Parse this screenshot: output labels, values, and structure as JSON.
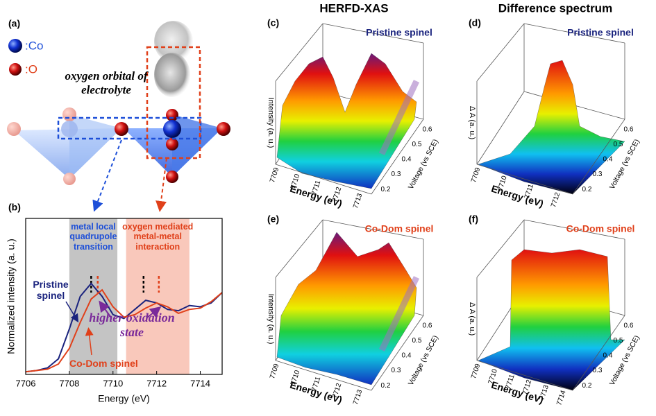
{
  "figure": {
    "panel_a": {
      "label": "(a)",
      "legend": [
        ":Co",
        ":O"
      ],
      "caption": "oxygen orbital of electrolyte"
    },
    "panel_b_label": "(b)",
    "columns": [
      "HERFD-XAS",
      "Difference spectrum"
    ],
    "surfaces": [
      {
        "label": "(c)",
        "title": "Pristine spinel",
        "z_label": "Intensity (a. u.)",
        "x_label": "Energy (eV)",
        "y_label": "Voltage (vs SCE)",
        "x_ticks": [
          7709,
          7710,
          7711,
          7712,
          7713
        ],
        "y_ticks": [
          0.2,
          0.3,
          0.4,
          0.5,
          0.6
        ]
      },
      {
        "label": "(d)",
        "title": "Pristine spinel",
        "z_label": "Δ A (a. u.)",
        "x_label": "Energy (eV)",
        "y_label": "Voltage (vs SCE)",
        "x_ticks": [
          7709,
          7710,
          7711,
          7712
        ],
        "y_ticks": [
          0.2,
          0.3,
          0.4,
          0.5,
          0.6
        ]
      },
      {
        "label": "(e)",
        "title": "Co-Dom spinel",
        "z_label": "Intensity (a. u.)",
        "x_label": "Energy (eV)",
        "y_label": "Voltage (vs SCE)",
        "x_ticks": [
          7709,
          7710,
          7711,
          7712,
          7713
        ],
        "y_ticks": [
          0.2,
          0.3,
          0.4,
          0.5,
          0.6
        ]
      },
      {
        "label": "(f)",
        "title": "Co-Dom spinel",
        "z_label": "Δ A (a. u.)",
        "x_label": "Energy (eV)",
        "y_label": "Voltage (vs SCE)",
        "x_ticks": [
          7709,
          7710,
          7711,
          7712,
          7713,
          7714
        ],
        "y_ticks": [
          0.2,
          0.3,
          0.4,
          0.5,
          0.6
        ]
      }
    ]
  },
  "chart_data": {
    "type": "line",
    "x_label": "Energy (eV)",
    "y_label": "Normalized intensity (a. u.)",
    "x": [
      7706,
      7706.5,
      7707,
      7707.5,
      7708,
      7708.5,
      7709,
      7709.5,
      7710,
      7710.5,
      7711,
      7711.5,
      7712,
      7712.5,
      7713,
      7713.5,
      7714,
      7714.5,
      7715
    ],
    "series": [
      {
        "name": "Pristine spinel",
        "color": "#1a237e",
        "values": [
          0.02,
          0.03,
          0.05,
          0.12,
          0.35,
          0.6,
          0.7,
          0.6,
          0.46,
          0.43,
          0.5,
          0.57,
          0.55,
          0.5,
          0.49,
          0.53,
          0.52,
          0.55,
          0.63
        ]
      },
      {
        "name": "Co-Dom spinel",
        "color": "#e0401a",
        "values": [
          0.02,
          0.03,
          0.04,
          0.08,
          0.2,
          0.4,
          0.58,
          0.65,
          0.52,
          0.44,
          0.46,
          0.51,
          0.55,
          0.52,
          0.47,
          0.5,
          0.51,
          0.56,
          0.63
        ]
      }
    ],
    "xlim": [
      7706,
      7715
    ],
    "xticks": [
      7706,
      7708,
      7710,
      7712,
      7714
    ],
    "ylim": [
      0,
      1.2
    ],
    "regions": [
      {
        "start": 7708,
        "end": 7710.2,
        "color": "#c4c4c4",
        "label": "metal local quadrupole transition",
        "label_color": "#1d4fd8"
      },
      {
        "start": 7710.6,
        "end": 7713.5,
        "color": "#f9c8bb",
        "label": "oxygen mediated metal-metal interaction",
        "label_color": "#e0401a"
      }
    ],
    "markers": [
      {
        "x": 7709,
        "color": "#000000"
      },
      {
        "x": 7709.3,
        "color": "#e0401a"
      },
      {
        "x": 7711.4,
        "color": "#000000"
      },
      {
        "x": 7712.1,
        "color": "#e0401a"
      }
    ],
    "annotation": "higher oxidation state"
  }
}
